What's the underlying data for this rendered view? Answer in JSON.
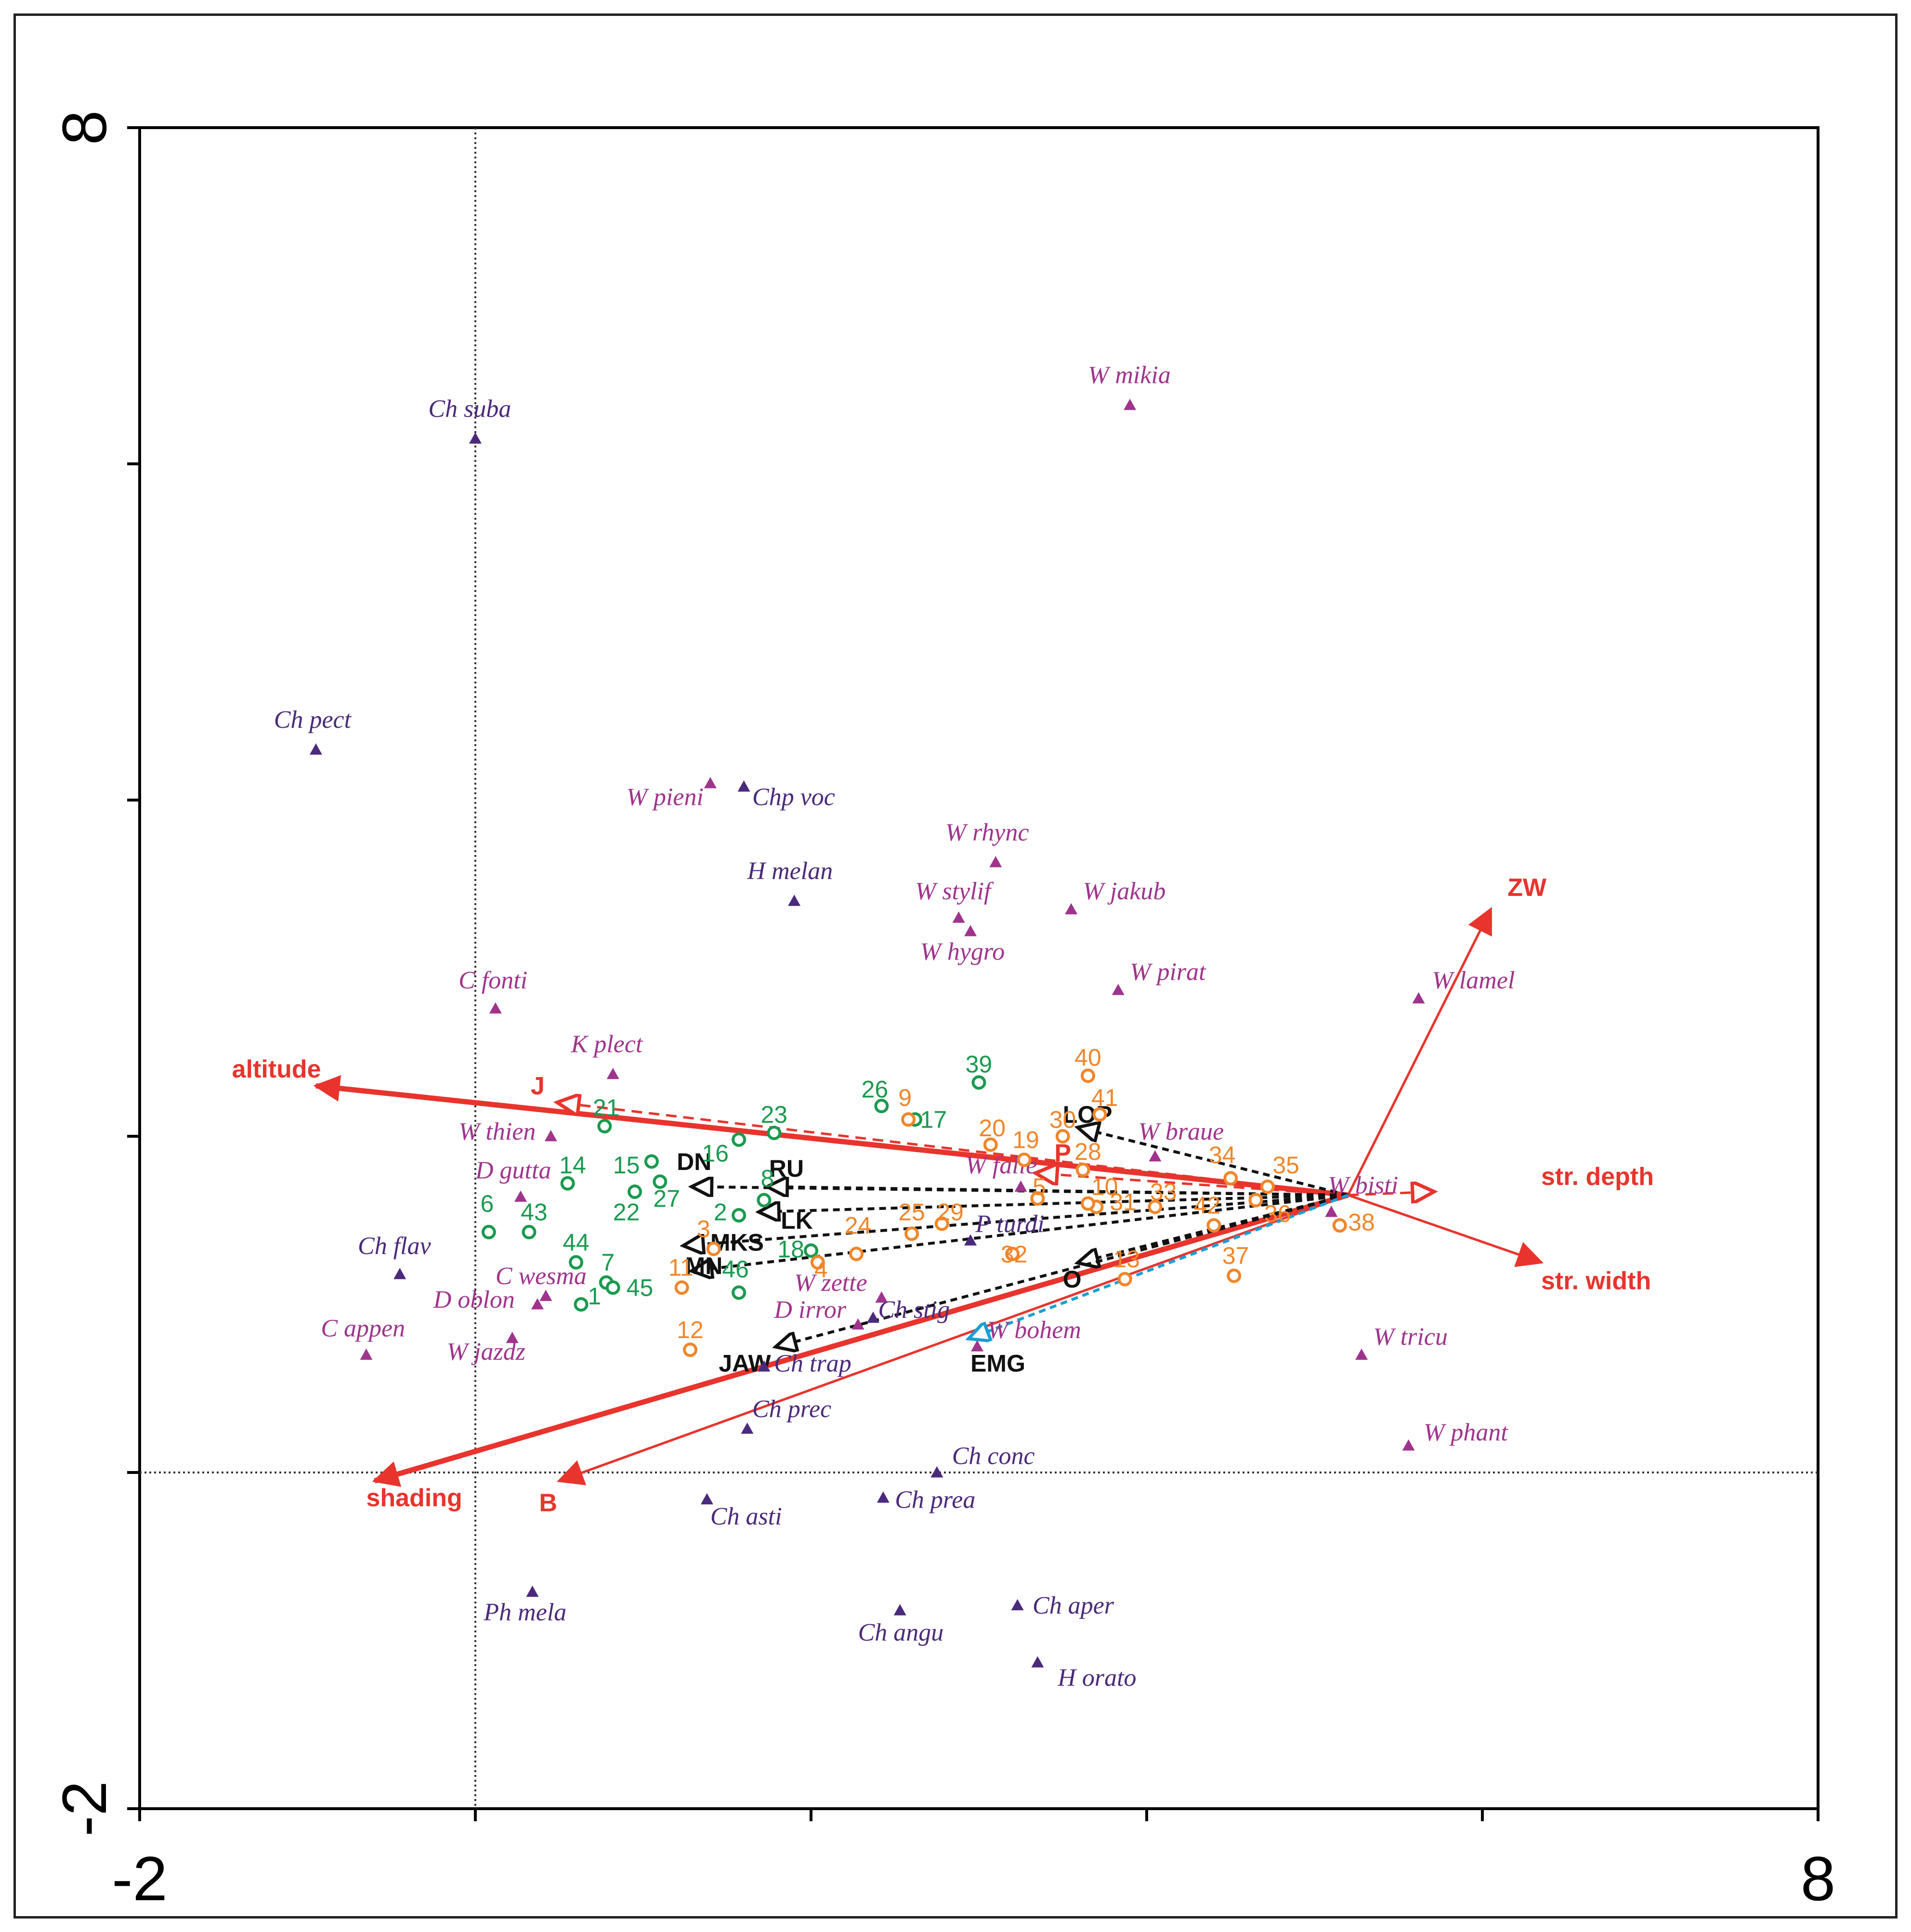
{
  "chart_data": {
    "type": "scatter",
    "subtype": "ordination-triplot",
    "xlim": [
      -2,
      8
    ],
    "ylim": [
      -2,
      8
    ],
    "x_ticks": [
      -2,
      0,
      2,
      4,
      6,
      8
    ],
    "y_ticks": [
      -2,
      0,
      2,
      4,
      6,
      8
    ],
    "x_tick_labels": {
      "min": "-2",
      "max": "8"
    },
    "y_tick_labels": {
      "min": "-2",
      "max": "8"
    },
    "reference_lines": {
      "x": 0,
      "y": 0
    },
    "colors": {
      "env": "#e8342d",
      "hidden": "#111111",
      "emg": "#1a9fd6",
      "species_magenta": "#a0348c",
      "species_purple": "#4b2a7b",
      "site_green": "#1a9a4f",
      "site_orange": "#f0862a"
    },
    "origin": [
      5.2,
      1.65
    ],
    "env_vectors": [
      {
        "label": "altitude",
        "x": -0.95,
        "y": 2.3,
        "style": "solid",
        "weight": "thick",
        "lx": -1.45,
        "ly": 2.35
      },
      {
        "label": "shading",
        "x": -0.6,
        "y": -0.05,
        "style": "solid",
        "weight": "thick",
        "lx": -0.65,
        "ly": -0.2
      },
      {
        "label": "B",
        "x": 0.5,
        "y": -0.05,
        "style": "solid",
        "weight": "thin",
        "lx": 0.38,
        "ly": -0.23
      },
      {
        "label": "ZW",
        "x": 6.05,
        "y": 3.35,
        "style": "solid",
        "weight": "thin",
        "lx": 6.15,
        "ly": 3.43
      },
      {
        "label": "str. width",
        "x": 6.35,
        "y": 1.25,
        "style": "solid",
        "weight": "thin",
        "lx": 6.35,
        "ly": 1.09
      },
      {
        "label": "str. depth",
        "x": 5.7,
        "y": 1.67,
        "style": "dashed",
        "weight": "thin",
        "lx": 6.35,
        "ly": 1.71
      },
      {
        "label": "J",
        "x": 0.5,
        "y": 2.2,
        "style": "dashed",
        "weight": "thin",
        "lx": 0.33,
        "ly": 2.25
      },
      {
        "label": "P",
        "x": 3.35,
        "y": 1.78,
        "style": "dashed",
        "weight": "thin",
        "lx": 3.45,
        "ly": 1.85
      }
    ],
    "hidden_vectors": [
      {
        "label": "LOP",
        "x": 3.6,
        "y": 2.05,
        "lx": 3.5,
        "ly": 2.08
      },
      {
        "label": "DN",
        "x": 1.3,
        "y": 1.7,
        "lx": 1.2,
        "ly": 1.8
      },
      {
        "label": "RU",
        "x": 1.75,
        "y": 1.7,
        "lx": 1.75,
        "ly": 1.76
      },
      {
        "label": "LK",
        "x": 1.7,
        "y": 1.55,
        "lx": 1.82,
        "ly": 1.45
      },
      {
        "label": "MKS",
        "x": 1.25,
        "y": 1.35,
        "lx": 1.4,
        "ly": 1.32
      },
      {
        "label": "MN",
        "x": 1.3,
        "y": 1.2,
        "lx": 1.25,
        "ly": 1.18
      },
      {
        "label": "O",
        "x": 3.6,
        "y": 1.25,
        "lx": 3.5,
        "ly": 1.1
      },
      {
        "label": "JAW",
        "x": 1.8,
        "y": 0.75,
        "lx": 1.45,
        "ly": 0.6
      },
      {
        "label": "EMG",
        "x": 2.95,
        "y": 0.8,
        "lx": 2.95,
        "ly": 0.6
      }
    ],
    "species": [
      {
        "label": "Ch suba",
        "x": 0.0,
        "y": 6.15,
        "color": "purple",
        "lx": -0.28,
        "ly": 6.28
      },
      {
        "label": "W mikia",
        "x": 3.9,
        "y": 6.35,
        "color": "magenta",
        "lx": 3.65,
        "ly": 6.48
      },
      {
        "label": "Ch pect",
        "x": -0.95,
        "y": 4.3,
        "color": "purple",
        "lx": -1.2,
        "ly": 4.43
      },
      {
        "label": "W pieni",
        "x": 1.4,
        "y": 4.1,
        "color": "magenta",
        "lx": 0.9,
        "ly": 3.97
      },
      {
        "label": "Chp voc",
        "x": 1.6,
        "y": 4.08,
        "color": "purple",
        "lx": 1.65,
        "ly": 3.97
      },
      {
        "label": "W rhync",
        "x": 3.1,
        "y": 3.63,
        "color": "magenta",
        "lx": 2.8,
        "ly": 3.76
      },
      {
        "label": "H melan",
        "x": 1.9,
        "y": 3.4,
        "color": "purple",
        "lx": 1.62,
        "ly": 3.53
      },
      {
        "label": "W stylif",
        "x": 2.88,
        "y": 3.3,
        "color": "magenta",
        "lx": 2.62,
        "ly": 3.41
      },
      {
        "label": "W jakub",
        "x": 3.55,
        "y": 3.35,
        "color": "magenta",
        "lx": 3.62,
        "ly": 3.41
      },
      {
        "label": "W hygro",
        "x": 2.95,
        "y": 3.22,
        "color": "magenta",
        "lx": 2.65,
        "ly": 3.05
      },
      {
        "label": "W pirat",
        "x": 3.83,
        "y": 2.87,
        "color": "magenta",
        "lx": 3.9,
        "ly": 2.93
      },
      {
        "label": "W lamel",
        "x": 5.62,
        "y": 2.82,
        "color": "magenta",
        "lx": 5.7,
        "ly": 2.88
      },
      {
        "label": "C fonti",
        "x": 0.12,
        "y": 2.76,
        "color": "magenta",
        "lx": -0.1,
        "ly": 2.88
      },
      {
        "label": "K plect",
        "x": 0.82,
        "y": 2.37,
        "color": "magenta",
        "lx": 0.57,
        "ly": 2.5
      },
      {
        "label": "W thien",
        "x": 0.45,
        "y": 2.0,
        "color": "magenta",
        "lx": -0.1,
        "ly": 1.98
      },
      {
        "label": "W braue",
        "x": 4.05,
        "y": 1.88,
        "color": "magenta",
        "lx": 3.95,
        "ly": 1.98
      },
      {
        "label": "D gutta",
        "x": 0.27,
        "y": 1.64,
        "color": "magenta",
        "lx": 0.0,
        "ly": 1.75
      },
      {
        "label": "W falle",
        "x": 3.25,
        "y": 1.7,
        "color": "magenta",
        "lx": 2.92,
        "ly": 1.78
      },
      {
        "label": "W bisti",
        "x": 5.1,
        "y": 1.55,
        "color": "magenta",
        "lx": 5.08,
        "ly": 1.66
      },
      {
        "label": "Ch flav",
        "x": -0.45,
        "y": 1.18,
        "color": "purple",
        "lx": -0.7,
        "ly": 1.3
      },
      {
        "label": "C wesma",
        "x": 0.42,
        "y": 1.05,
        "color": "magenta",
        "lx": 0.12,
        "ly": 1.12
      },
      {
        "label": "D oblon",
        "x": 0.37,
        "y": 1.0,
        "color": "magenta",
        "lx": -0.25,
        "ly": 0.98
      },
      {
        "label": "P turdi",
        "x": 2.95,
        "y": 1.38,
        "color": "purple",
        "lx": 2.98,
        "ly": 1.43
      },
      {
        "label": "W zette",
        "x": 2.42,
        "y": 1.04,
        "color": "magenta",
        "lx": 1.9,
        "ly": 1.08
      },
      {
        "label": "D irror",
        "x": 2.28,
        "y": 0.88,
        "color": "magenta",
        "lx": 1.78,
        "ly": 0.92
      },
      {
        "label": "Ch stig",
        "x": 2.37,
        "y": 0.92,
        "color": "purple",
        "lx": 2.4,
        "ly": 0.92
      },
      {
        "label": "C appen",
        "x": -0.65,
        "y": 0.7,
        "color": "magenta",
        "lx": -0.92,
        "ly": 0.81
      },
      {
        "label": "W jazdz",
        "x": 0.22,
        "y": 0.8,
        "color": "magenta",
        "lx": -0.17,
        "ly": 0.67
      },
      {
        "label": "W bohem",
        "x": 2.99,
        "y": 0.75,
        "color": "magenta",
        "lx": 3.05,
        "ly": 0.8
      },
      {
        "label": "W tricu",
        "x": 5.28,
        "y": 0.7,
        "color": "magenta",
        "lx": 5.35,
        "ly": 0.76
      },
      {
        "label": "Ch trap",
        "x": 1.72,
        "y": 0.63,
        "color": "purple",
        "lx": 1.78,
        "ly": 0.6
      },
      {
        "label": "Ch prec",
        "x": 1.62,
        "y": 0.26,
        "color": "purple",
        "lx": 1.65,
        "ly": 0.33
      },
      {
        "label": "W phant",
        "x": 5.56,
        "y": 0.16,
        "color": "magenta",
        "lx": 5.65,
        "ly": 0.19
      },
      {
        "label": "Ch conc",
        "x": 2.75,
        "y": 0.0,
        "color": "purple",
        "lx": 2.84,
        "ly": 0.05
      },
      {
        "label": "Ch asti",
        "x": 1.38,
        "y": -0.16,
        "color": "purple",
        "lx": 1.4,
        "ly": -0.31
      },
      {
        "label": "Ch prea",
        "x": 2.43,
        "y": -0.15,
        "color": "purple",
        "lx": 2.5,
        "ly": -0.21
      },
      {
        "label": "Ph mela",
        "x": 0.34,
        "y": -0.71,
        "color": "purple",
        "lx": 0.05,
        "ly": -0.88
      },
      {
        "label": "Ch aper",
        "x": 3.23,
        "y": -0.79,
        "color": "purple",
        "lx": 3.32,
        "ly": -0.84
      },
      {
        "label": "Ch angu",
        "x": 2.53,
        "y": -0.82,
        "color": "purple",
        "lx": 2.28,
        "ly": -1.0
      },
      {
        "label": "H orato",
        "x": 3.35,
        "y": -1.13,
        "color": "purple",
        "lx": 3.47,
        "ly": -1.27
      }
    ],
    "sites": [
      {
        "label": "21",
        "x": 0.77,
        "y": 2.06,
        "group": "green",
        "lx": 0.7,
        "ly": 2.12
      },
      {
        "label": "26",
        "x": 2.42,
        "y": 2.18,
        "group": "green",
        "lx": 2.3,
        "ly": 2.23
      },
      {
        "label": "39",
        "x": 3.0,
        "y": 2.32,
        "group": "green",
        "lx": 2.92,
        "ly": 2.38
      },
      {
        "label": "17",
        "x": 2.62,
        "y": 2.1,
        "group": "green",
        "lx": 2.65,
        "ly": 2.05
      },
      {
        "label": "23",
        "x": 1.78,
        "y": 2.02,
        "group": "green",
        "lx": 1.7,
        "ly": 2.08
      },
      {
        "label": "16",
        "x": 1.57,
        "y": 1.98,
        "group": "green",
        "lx": 1.35,
        "ly": 1.85
      },
      {
        "label": "14",
        "x": 0.55,
        "y": 1.72,
        "group": "green",
        "lx": 0.5,
        "ly": 1.78
      },
      {
        "label": "15",
        "x": 1.05,
        "y": 1.85,
        "group": "green",
        "lx": 0.82,
        "ly": 1.78
      },
      {
        "label": "8",
        "x": 1.72,
        "y": 1.62,
        "group": "green",
        "lx": 1.7,
        "ly": 1.7
      },
      {
        "label": "27",
        "x": 1.1,
        "y": 1.73,
        "group": "green",
        "lx": 1.06,
        "ly": 1.58
      },
      {
        "label": "22",
        "x": 0.95,
        "y": 1.67,
        "group": "green",
        "lx": 0.82,
        "ly": 1.5
      },
      {
        "label": "2",
        "x": 1.57,
        "y": 1.53,
        "group": "green",
        "lx": 1.42,
        "ly": 1.5
      },
      {
        "label": "6",
        "x": 0.08,
        "y": 1.43,
        "group": "green",
        "lx": 0.03,
        "ly": 1.55
      },
      {
        "label": "43",
        "x": 0.32,
        "y": 1.43,
        "group": "green",
        "lx": 0.27,
        "ly": 1.5
      },
      {
        "label": "44",
        "x": 0.6,
        "y": 1.25,
        "group": "green",
        "lx": 0.52,
        "ly": 1.32
      },
      {
        "label": "7",
        "x": 0.78,
        "y": 1.13,
        "group": "green",
        "lx": 0.75,
        "ly": 1.2
      },
      {
        "label": "45",
        "x": 0.82,
        "y": 1.1,
        "group": "green",
        "lx": 0.9,
        "ly": 1.05
      },
      {
        "label": "1",
        "x": 0.63,
        "y": 1.0,
        "group": "green",
        "lx": 0.67,
        "ly": 1.0
      },
      {
        "label": "18",
        "x": 2.0,
        "y": 1.32,
        "group": "green",
        "lx": 1.8,
        "ly": 1.28
      },
      {
        "label": "46",
        "x": 1.57,
        "y": 1.07,
        "group": "green",
        "lx": 1.47,
        "ly": 1.16
      },
      {
        "label": "9",
        "x": 2.58,
        "y": 2.1,
        "group": "orange",
        "lx": 2.52,
        "ly": 2.18
      },
      {
        "label": "40",
        "x": 3.65,
        "y": 2.36,
        "group": "orange",
        "lx": 3.57,
        "ly": 2.42
      },
      {
        "label": "41",
        "x": 3.72,
        "y": 2.13,
        "group": "orange",
        "lx": 3.67,
        "ly": 2.18
      },
      {
        "label": "20",
        "x": 3.07,
        "y": 1.95,
        "group": "orange",
        "lx": 3.0,
        "ly": 2.0
      },
      {
        "label": "19",
        "x": 3.27,
        "y": 1.86,
        "group": "orange",
        "lx": 3.2,
        "ly": 1.93
      },
      {
        "label": "30",
        "x": 3.5,
        "y": 2.0,
        "group": "orange",
        "lx": 3.42,
        "ly": 2.05
      },
      {
        "label": "28",
        "x": 3.62,
        "y": 1.8,
        "group": "orange",
        "lx": 3.57,
        "ly": 1.86
      },
      {
        "label": "10",
        "x": 3.7,
        "y": 1.58,
        "group": "orange",
        "lx": 3.67,
        "ly": 1.65
      },
      {
        "label": "5",
        "x": 3.35,
        "y": 1.63,
        "group": "orange",
        "lx": 3.32,
        "ly": 1.65
      },
      {
        "label": "31",
        "x": 3.65,
        "y": 1.6,
        "group": "orange",
        "lx": 3.78,
        "ly": 1.56
      },
      {
        "label": "33",
        "x": 4.05,
        "y": 1.58,
        "group": "orange",
        "lx": 4.02,
        "ly": 1.62
      },
      {
        "label": "34",
        "x": 4.5,
        "y": 1.75,
        "group": "orange",
        "lx": 4.37,
        "ly": 1.84
      },
      {
        "label": "35",
        "x": 4.72,
        "y": 1.7,
        "group": "orange",
        "lx": 4.75,
        "ly": 1.78
      },
      {
        "label": "42",
        "x": 4.4,
        "y": 1.47,
        "group": "orange",
        "lx": 4.28,
        "ly": 1.54
      },
      {
        "label": "36",
        "x": 4.65,
        "y": 1.62,
        "group": "orange",
        "lx": 4.7,
        "ly": 1.49
      },
      {
        "label": "38",
        "x": 5.15,
        "y": 1.47,
        "group": "orange",
        "lx": 5.2,
        "ly": 1.44
      },
      {
        "label": "37",
        "x": 4.52,
        "y": 1.17,
        "group": "orange",
        "lx": 4.45,
        "ly": 1.24
      },
      {
        "label": "13",
        "x": 3.87,
        "y": 1.15,
        "group": "orange",
        "lx": 3.8,
        "ly": 1.22
      },
      {
        "label": "24",
        "x": 2.27,
        "y": 1.3,
        "group": "orange",
        "lx": 2.2,
        "ly": 1.42
      },
      {
        "label": "25",
        "x": 2.6,
        "y": 1.42,
        "group": "orange",
        "lx": 2.52,
        "ly": 1.5
      },
      {
        "label": "29",
        "x": 2.78,
        "y": 1.48,
        "group": "orange",
        "lx": 2.75,
        "ly": 1.5
      },
      {
        "label": "3",
        "x": 1.42,
        "y": 1.33,
        "group": "orange",
        "lx": 1.32,
        "ly": 1.4
      },
      {
        "label": "4",
        "x": 2.04,
        "y": 1.25,
        "group": "orange",
        "lx": 2.02,
        "ly": 1.16
      },
      {
        "label": "11",
        "x": 1.23,
        "y": 1.1,
        "group": "orange",
        "lx": 1.15,
        "ly": 1.17
      },
      {
        "label": "12",
        "x": 1.28,
        "y": 0.73,
        "group": "orange",
        "lx": 1.2,
        "ly": 0.8
      },
      {
        "label": "32",
        "x": 3.2,
        "y": 1.3,
        "group": "orange",
        "lx": 3.13,
        "ly": 1.25
      }
    ]
  }
}
